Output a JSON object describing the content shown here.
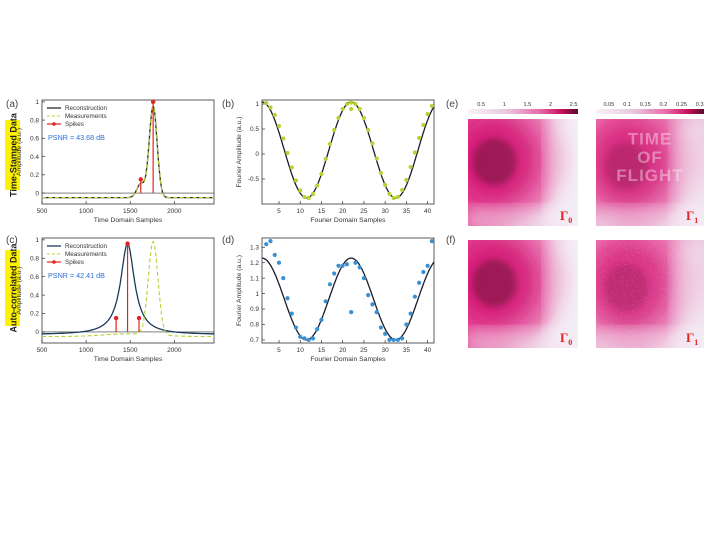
{
  "row_labels": [
    "Time-Stamped Data",
    "Auto-correlated Data"
  ],
  "panel_labels": [
    "(a)",
    "(b)",
    "(c)",
    "(d)",
    "(e)",
    "(f)"
  ],
  "colors": {
    "reconstruction_a": "#2b2b2b",
    "reconstruction_c": "#1b3a5c",
    "measurement": "#b5d334",
    "spike": "#e3231f",
    "fourier_fit": "#1a1a2e",
    "fourier_points_b": "#b5d334",
    "fourier_points_d": "#3b8fd1",
    "psnr_text": "#2a6fdb",
    "row_label_bg": "#fff200",
    "map_accent": "#e0137a",
    "gamma_label": "#e3231f"
  },
  "chart_data": [
    {
      "id": "a",
      "type": "line",
      "xlabel": "Time Domain Samples",
      "ylabel": "Amplitude (a.u.)",
      "xlim": [
        500,
        2450
      ],
      "ylim": [
        -0.12,
        1.02
      ],
      "xticks": [
        500,
        1000,
        1500,
        2000
      ],
      "yticks": [
        0,
        0.2,
        0.4,
        0.6,
        0.8,
        1
      ],
      "yticklabels": [
        "0",
        "0.2",
        "0.4",
        "0.6",
        "0.8",
        "1"
      ],
      "annotation": "PSNR = 43.68 dB",
      "legend": [
        "Reconstruction",
        "Measurements",
        "Spikes"
      ],
      "legend_location": "top-right",
      "spikes": [
        {
          "x": 1620,
          "y": 0.15
        },
        {
          "x": 1760,
          "y": 1.0
        }
      ],
      "pulses": [
        {
          "center": 1620,
          "height": 0.15,
          "width": 45,
          "shape": "gauss"
        },
        {
          "center": 1760,
          "height": 1.0,
          "width": 45,
          "shape": "gauss"
        }
      ],
      "measurement_offset_x": 0,
      "baseline": -0.05
    },
    {
      "id": "b",
      "type": "line+scatter",
      "xlabel": "Fourier Domain Samples",
      "ylabel": "Fourier Amplitude (a.u.)",
      "xlim": [
        1,
        41.5
      ],
      "ylim": [
        -1.0,
        1.08
      ],
      "xticks": [
        5,
        10,
        15,
        20,
        25,
        30,
        35,
        40
      ],
      "yticks": [
        -0.5,
        0,
        0.5,
        1
      ],
      "yticklabels": [
        "-0.5",
        "0",
        "0.5",
        "1"
      ],
      "fit": {
        "offset": 0.08,
        "amplitude": 0.96,
        "period": 21,
        "peak_at": 22
      },
      "points": [
        [
          2,
          1.02
        ],
        [
          3,
          0.93
        ],
        [
          4,
          0.78
        ],
        [
          5,
          0.56
        ],
        [
          6,
          0.31
        ],
        [
          7,
          0.02
        ],
        [
          8,
          -0.27
        ],
        [
          9,
          -0.53
        ],
        [
          10,
          -0.73
        ],
        [
          11,
          -0.86
        ],
        [
          12,
          -0.88
        ],
        [
          13,
          -0.8
        ],
        [
          14,
          -0.63
        ],
        [
          15,
          -0.4
        ],
        [
          16,
          -0.1
        ],
        [
          17,
          0.2
        ],
        [
          18,
          0.48
        ],
        [
          19,
          0.72
        ],
        [
          20,
          0.9
        ],
        [
          21,
          1.0
        ],
        [
          22,
          1.03
        ],
        [
          23,
          1.0
        ],
        [
          24,
          0.9
        ],
        [
          25,
          0.72
        ],
        [
          26,
          0.48
        ],
        [
          27,
          0.21
        ],
        [
          28,
          -0.09
        ],
        [
          29,
          -0.38
        ],
        [
          30,
          -0.62
        ],
        [
          31,
          -0.8
        ],
        [
          32,
          -0.88
        ],
        [
          33,
          -0.86
        ],
        [
          34,
          -0.72
        ],
        [
          35,
          -0.52
        ],
        [
          36,
          -0.26
        ],
        [
          37,
          0.03
        ],
        [
          38,
          0.32
        ],
        [
          39,
          0.58
        ],
        [
          40,
          0.8
        ],
        [
          41,
          0.96
        ]
      ],
      "outliers": [
        [
          22,
          0.9
        ]
      ]
    },
    {
      "id": "c",
      "type": "line",
      "xlabel": "Time Domain Samples",
      "ylabel": "Amplitude (a.u.)",
      "xlim": [
        500,
        2450
      ],
      "ylim": [
        -0.12,
        1.02
      ],
      "xticks": [
        500,
        1000,
        1500,
        2000
      ],
      "yticks": [
        0,
        0.2,
        0.4,
        0.6,
        0.8,
        1
      ],
      "yticklabels": [
        "0",
        "0.2",
        "0.4",
        "0.6",
        "0.8",
        "1"
      ],
      "annotation": "PSNR = 42.41 dB",
      "legend": [
        "Reconstruction",
        "Measurements",
        "Spikes"
      ],
      "legend_location": "top-right",
      "spikes": [
        {
          "x": 1340,
          "y": 0.15
        },
        {
          "x": 1470,
          "y": 0.96
        },
        {
          "x": 1600,
          "y": 0.15
        }
      ],
      "pulses": [
        {
          "center": 1470,
          "height": 0.96,
          "width": 95,
          "shape": "lorentz"
        }
      ],
      "measurement": {
        "center": 1760,
        "height": 0.96,
        "width": 55
      },
      "baseline": -0.03
    },
    {
      "id": "d",
      "type": "line+scatter",
      "xlabel": "Fourier Domain Samples",
      "ylabel": "Fourier Amplitude (a.u.)",
      "xlim": [
        1,
        41.5
      ],
      "ylim": [
        0.68,
        1.36
      ],
      "xticks": [
        5,
        10,
        15,
        20,
        25,
        30,
        35,
        40
      ],
      "yticks": [
        0.7,
        0.8,
        0.9,
        1,
        1.1,
        1.2,
        1.3
      ],
      "yticklabels": [
        "0.7",
        "0.8",
        "0.9",
        "1",
        "1.1",
        "1.2",
        "1.3"
      ],
      "fit": {
        "offset": 0.965,
        "amplitude": 0.265,
        "period": 21,
        "peak_at": 22
      },
      "points": [
        [
          2,
          1.32
        ],
        [
          3,
          1.34
        ],
        [
          4,
          1.25
        ],
        [
          5,
          1.2
        ],
        [
          6,
          1.1
        ],
        [
          7,
          0.97
        ],
        [
          8,
          0.87
        ],
        [
          9,
          0.78
        ],
        [
          10,
          0.72
        ],
        [
          11,
          0.71
        ],
        [
          12,
          0.7
        ],
        [
          13,
          0.71
        ],
        [
          14,
          0.77
        ],
        [
          15,
          0.83
        ],
        [
          16,
          0.95
        ],
        [
          17,
          1.06
        ],
        [
          18,
          1.13
        ],
        [
          19,
          1.18
        ],
        [
          20,
          1.18
        ],
        [
          21,
          1.19
        ],
        [
          22,
          0.88
        ],
        [
          23,
          1.2
        ],
        [
          24,
          1.17
        ],
        [
          25,
          1.1
        ],
        [
          26,
          0.99
        ],
        [
          27,
          0.93
        ],
        [
          28,
          0.88
        ],
        [
          29,
          0.78
        ],
        [
          30,
          0.74
        ],
        [
          31,
          0.7
        ],
        [
          32,
          0.7
        ],
        [
          33,
          0.7
        ],
        [
          34,
          0.71
        ],
        [
          35,
          0.8
        ],
        [
          36,
          0.87
        ],
        [
          37,
          0.98
        ],
        [
          38,
          1.07
        ],
        [
          39,
          1.14
        ],
        [
          40,
          1.18
        ],
        [
          41,
          1.34
        ]
      ]
    },
    {
      "id": "e0",
      "type": "heatmap",
      "colorbar_ticks": [
        "0.5",
        "1",
        "1.5",
        "2",
        "2.5"
      ],
      "symbol": "Γ",
      "subscript": "0",
      "peak": {
        "fx": 0.32,
        "fy": 0.38
      },
      "intensity": 1.0
    },
    {
      "id": "e1",
      "type": "heatmap",
      "colorbar_ticks": [
        "0.05",
        "0.1",
        "0.15",
        "0.2",
        "0.25",
        "0.3"
      ],
      "symbol": "Γ",
      "subscript": "1",
      "overlay_text": [
        "TIME",
        "OF",
        "FLIGHT"
      ],
      "peak": {
        "fx": 0.36,
        "fy": 0.42
      },
      "intensity": 0.85
    },
    {
      "id": "f0",
      "type": "heatmap",
      "symbol": "Γ",
      "subscript": "0",
      "peak": {
        "fx": 0.32,
        "fy": 0.38
      },
      "intensity": 1.0
    },
    {
      "id": "f1",
      "type": "heatmap",
      "symbol": "Γ",
      "subscript": "1",
      "peak": {
        "fx": 0.36,
        "fy": 0.42
      },
      "intensity": 0.8,
      "noisy": true
    }
  ]
}
